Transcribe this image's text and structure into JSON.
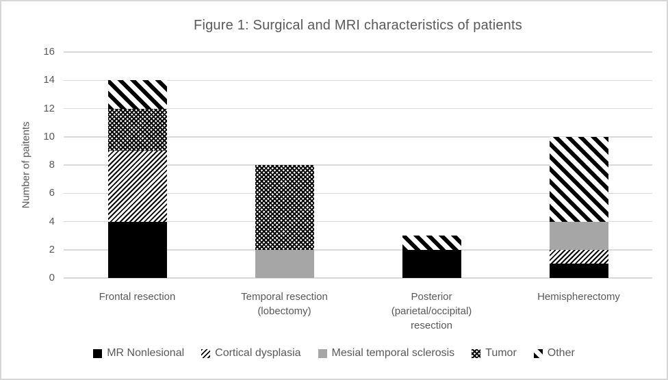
{
  "chart_data": {
    "type": "bar",
    "stacked": true,
    "title": "Figure 1: Surgical and MRI characteristics of patients",
    "xlabel": "",
    "ylabel": "Number of paitents",
    "ylim": [
      0,
      16
    ],
    "yticks": [
      0,
      2,
      4,
      6,
      8,
      10,
      12,
      14,
      16
    ],
    "grid": true,
    "legend_position": "bottom",
    "categories": [
      "Frontal resection",
      "Temporal resection (lobectomy)",
      "Posterior (parietal/occipital) resection",
      "Hemispherectomy"
    ],
    "series": [
      {
        "name": "MR Nonlesional",
        "pattern": "solid-black",
        "values": [
          4,
          0,
          2,
          1
        ]
      },
      {
        "name": "Cortical dysplasia",
        "pattern": "diagonal-up-fine",
        "values": [
          5,
          0,
          0,
          1
        ]
      },
      {
        "name": "Mesial temporal sclerosis",
        "pattern": "solid-gray",
        "values": [
          0,
          2,
          0,
          2
        ]
      },
      {
        "name": "Tumor",
        "pattern": "crosshatch",
        "values": [
          3,
          6,
          0,
          0
        ]
      },
      {
        "name": "Other",
        "pattern": "diagonal-down-bold",
        "values": [
          2,
          0,
          1,
          6
        ]
      }
    ]
  },
  "colors": {
    "text": "#595959",
    "gridline": "#d9d9d9",
    "border": "#d7d7d7",
    "background": "#ffffff",
    "bar_black": "#000000",
    "bar_gray": "#a6a6a6"
  }
}
